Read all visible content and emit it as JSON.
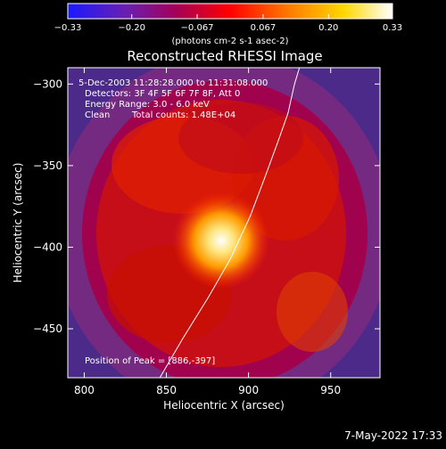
{
  "chart_data": {
    "type": "heatmap",
    "title": "Reconstructed RHESSI Image",
    "xlabel": "Heliocentric X (arcsec)",
    "ylabel": "Heliocentric Y (arcsec)",
    "xlim": [
      790,
      980
    ],
    "ylim": [
      -480,
      -290
    ],
    "x_ticks": [
      800,
      850,
      900,
      950
    ],
    "y_ticks": [
      -300,
      -350,
      -400,
      -450
    ],
    "colorbar": {
      "range": [
        -0.33,
        0.33
      ],
      "ticks": [
        "-0.33",
        "-0.20",
        "-0.067",
        "0.067",
        "0.20",
        "0.33"
      ],
      "units_label": "(photons cm-2 s-1 asec-2)",
      "colormap": [
        "#1a1aff",
        "#6a1fb0",
        "#a3005a",
        "#ff0000",
        "#ff7a00",
        "#ffd800",
        "#ffffff"
      ]
    },
    "annotations": [
      "5-Dec-2003 11:28:28.000 to 11:31:08.000",
      "Detectors: 3F 4F 5F 6F 7F 8F, Att 0",
      "Energy Range: 3.0 - 6.0 keV",
      "Clean",
      "Total counts: 1.48E+04",
      "Position of Peak = [886,-397]"
    ],
    "peak": {
      "x": 886,
      "y": -397,
      "value": 0.33
    },
    "limb_curve": [
      [
        846,
        -480
      ],
      [
        860,
        -456
      ],
      [
        876,
        -430
      ],
      [
        889,
        -407
      ],
      [
        901,
        -381
      ],
      [
        910,
        -357
      ],
      [
        918,
        -335
      ],
      [
        924,
        -318
      ],
      [
        928,
        -300
      ],
      [
        931,
        -290
      ]
    ],
    "grid": false
  },
  "footer": {
    "timestamp": "7-May-2022 17:33"
  }
}
